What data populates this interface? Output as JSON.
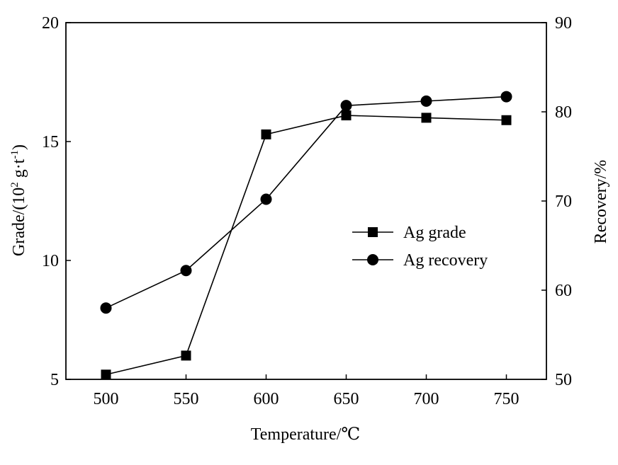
{
  "chart_data": {
    "type": "line",
    "x": [
      500,
      550,
      600,
      650,
      700,
      750
    ],
    "xlabel": "Temperature/℃",
    "xlim": [
      475,
      775
    ],
    "xticks": [
      "500",
      "550",
      "600",
      "650",
      "700",
      "750"
    ],
    "ylabel_left": "Grade/(10",
    "ylabel_left_sup1": "2",
    "ylabel_left_mid": " g·t",
    "ylabel_left_sup2": "-1",
    "ylabel_left_end": ")",
    "ylim_left": [
      5,
      20
    ],
    "yticks_left": [
      "5",
      "10",
      "15",
      "20"
    ],
    "ylabel_right": "Recovery/%",
    "ylim_right": [
      50,
      90
    ],
    "yticks_right": [
      "50",
      "60",
      "70",
      "80",
      "90"
    ],
    "grid": false,
    "legend_position": "center-right",
    "series": [
      {
        "name": "Ag grade",
        "axis": "left",
        "marker": "square",
        "values": [
          5.2,
          6.0,
          15.3,
          16.1,
          16.0,
          15.9
        ]
      },
      {
        "name": "Ag recovery",
        "axis": "right",
        "marker": "circle",
        "values": [
          58.0,
          62.2,
          70.2,
          80.7,
          81.2,
          81.7
        ]
      }
    ]
  }
}
